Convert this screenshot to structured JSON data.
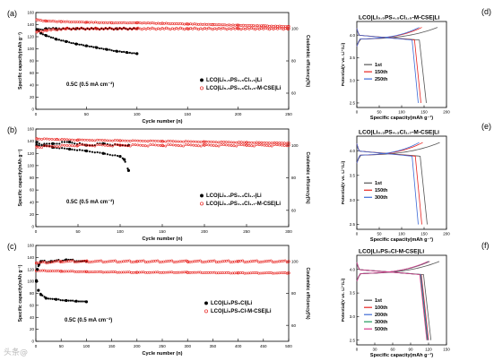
{
  "watermark": "头条@",
  "colors": {
    "black": "#000000",
    "red": "#e8231f",
    "blue": "#3d6bd6",
    "violet": "#d63a8a",
    "green": "#1f9a5c",
    "gray": "#555555"
  },
  "chart_data": [
    {
      "id": "a",
      "type": "scatter",
      "panel_label": "(a)",
      "xlabel": "Cycle number (n)",
      "ylabel": "Specific capacity(mAh g⁻¹)",
      "y2label": "Coulombic efficiency(%)",
      "xlim": [
        0,
        250
      ],
      "ylim": [
        0,
        160
      ],
      "y2lim": [
        50,
        110
      ],
      "xticks": [
        0,
        50,
        100,
        150,
        200,
        250
      ],
      "yticks": [
        0,
        20,
        40,
        60,
        80,
        100,
        120,
        140,
        160
      ],
      "y2ticks": [
        60,
        80,
        100
      ],
      "annotation": "0.5C (0.5 mA cm⁻²)",
      "series": [
        {
          "name": "LCO|Li₅.₅PS₄.₅Cl₁.₅|Li",
          "color": "black",
          "axis": "left",
          "x": [
            1,
            5,
            10,
            20,
            30,
            40,
            50,
            60,
            70,
            80,
            90,
            100
          ],
          "y": [
            132,
            126,
            122,
            116,
            112,
            108,
            105,
            102,
            99,
            96,
            94,
            92
          ]
        },
        {
          "name": "LCO|Li₅.₅PS₄.₅Cl₁.₅-M-CSE|Li",
          "color": "red",
          "axis": "left",
          "x": [
            1,
            10,
            25,
            50,
            75,
            100,
            125,
            150,
            175,
            200,
            225,
            250
          ],
          "y": [
            148,
            146,
            145,
            144,
            143,
            143,
            142,
            141,
            140,
            139,
            138,
            137
          ]
        },
        {
          "name": "",
          "color": "black",
          "axis": "right",
          "x": [
            1,
            10,
            20,
            40,
            60,
            80,
            100
          ],
          "y": [
            99,
            100,
            100,
            100,
            100,
            100,
            100
          ]
        },
        {
          "name": "",
          "color": "red",
          "axis": "right",
          "x": [
            1,
            10,
            30,
            60,
            100,
            150,
            200,
            250
          ],
          "y": [
            98,
            99,
            100,
            100,
            100,
            100,
            100,
            100
          ]
        }
      ]
    },
    {
      "id": "b",
      "type": "scatter",
      "panel_label": "(b)",
      "xlabel": "Cycle number (n)",
      "ylabel": "Specific capacity(mAh g⁻¹)",
      "y2label": "Coulombic efficiency(%)",
      "xlim": [
        0,
        300
      ],
      "ylim": [
        0,
        160
      ],
      "y2lim": [
        50,
        110
      ],
      "xticks": [
        0,
        50,
        100,
        150,
        200,
        250,
        300
      ],
      "yticks": [
        0,
        20,
        40,
        60,
        80,
        100,
        120,
        140,
        160
      ],
      "y2ticks": [
        60,
        80,
        100
      ],
      "annotation": "0.5C (0.5 mA cm⁻²)",
      "series": [
        {
          "name": "LCO|Li₆.₃PS₄.₃Cl₁.₇|Li",
          "color": "black",
          "axis": "left",
          "x": [
            1,
            10,
            20,
            40,
            60,
            80,
            100,
            105,
            110
          ],
          "y": [
            138,
            133,
            130,
            127,
            124,
            120,
            115,
            110,
            92
          ]
        },
        {
          "name": "LCO|Li₆.₃PS₄.₃Cl₁.₇-M-CSE|Li",
          "color": "red",
          "axis": "left",
          "x": [
            1,
            25,
            50,
            100,
            150,
            200,
            250,
            300
          ],
          "y": [
            144,
            143,
            142,
            141,
            140,
            139,
            138,
            137
          ]
        },
        {
          "name": "",
          "color": "black",
          "axis": "right",
          "x": [
            1,
            20,
            40,
            60,
            80,
            100,
            110
          ],
          "y": [
            100,
            101,
            102,
            100,
            101,
            100,
            100
          ]
        },
        {
          "name": "",
          "color": "red",
          "axis": "right",
          "x": [
            1,
            50,
            100,
            150,
            200,
            250,
            300
          ],
          "y": [
            99,
            100,
            100,
            100,
            100,
            100,
            100
          ]
        }
      ]
    },
    {
      "id": "c",
      "type": "scatter",
      "panel_label": "(c)",
      "xlabel": "Cycle number (n)",
      "ylabel": "Specific capacity(mAh g⁻¹)",
      "y2label": "Coulombic efficiency(%)",
      "xlim": [
        0,
        500
      ],
      "ylim": [
        0,
        160
      ],
      "y2lim": [
        50,
        110
      ],
      "xticks": [
        0,
        50,
        100,
        150,
        200,
        250,
        300,
        350,
        400,
        450,
        500
      ],
      "yticks": [
        0,
        20,
        40,
        60,
        80,
        100,
        120,
        140,
        160
      ],
      "y2ticks": [
        60,
        80,
        100
      ],
      "annotation": "0.5C (0.5 mA cm⁻²)",
      "series": [
        {
          "name": "LCO|Li₆PS₅Cl|Li",
          "color": "black",
          "axis": "left",
          "x": [
            1,
            5,
            10,
            20,
            40,
            60,
            80,
            100
          ],
          "y": [
            100,
            85,
            78,
            72,
            70,
            68,
            67,
            66
          ]
        },
        {
          "name": "LCO|Li₆PS₅Cl-M-CSE|Li",
          "color": "red",
          "axis": "left",
          "x": [
            1,
            50,
            100,
            200,
            300,
            400,
            500
          ],
          "y": [
            118,
            117,
            116,
            115,
            115,
            114,
            114
          ]
        },
        {
          "name": "",
          "color": "black",
          "axis": "right",
          "x": [
            1,
            3,
            6,
            10,
            30,
            60,
            100
          ],
          "y": [
            88,
            95,
            98,
            100,
            100,
            101,
            100
          ]
        },
        {
          "name": "",
          "color": "red",
          "axis": "right",
          "x": [
            1,
            50,
            100,
            200,
            300,
            400,
            500
          ],
          "y": [
            99,
            100,
            100,
            100,
            100,
            100,
            100
          ]
        }
      ]
    },
    {
      "id": "d",
      "type": "line",
      "panel_label": "(d)",
      "title": "LCO|Li₅.₅PS₄.₅Cl₁.₅-M-CSE|Li",
      "xlabel": "Specific capacity(mAh g⁻¹)",
      "ylabel": "Potential(V vs. Li⁺/Li)",
      "xlim": [
        0,
        200
      ],
      "ylim": [
        2.4,
        4.3
      ],
      "xticks": [
        0,
        50,
        100,
        150,
        200
      ],
      "yticks": [
        2.5,
        3.0,
        3.5,
        4.0
      ],
      "legend": "inside-left",
      "series": [
        {
          "name": "1st",
          "color": "gray",
          "cap": 155,
          "charge_cap": 180
        },
        {
          "name": "150th",
          "color": "red",
          "cap": 143,
          "charge_cap": 145
        },
        {
          "name": "250th",
          "color": "blue",
          "cap": 137,
          "charge_cap": 139
        }
      ]
    },
    {
      "id": "e",
      "type": "line",
      "panel_label": "(e)",
      "title": "LCO|Li₆.₃PS₄.₃Cl₁.₇-M-CSE|Li",
      "xlabel": "Specific capacity(mAh g⁻¹)",
      "ylabel": "Potential(V vs. Li⁺/Li)",
      "xlim": [
        0,
        200
      ],
      "ylim": [
        2.4,
        4.3
      ],
      "xticks": [
        0,
        50,
        100,
        150,
        200
      ],
      "yticks": [
        2.5,
        3.0,
        3.5,
        4.0
      ],
      "legend": "inside-left",
      "series": [
        {
          "name": "1st",
          "color": "gray",
          "cap": 157,
          "charge_cap": 185
        },
        {
          "name": "150th",
          "color": "red",
          "cap": 145,
          "charge_cap": 147
        },
        {
          "name": "300th",
          "color": "blue",
          "cap": 137,
          "charge_cap": 139
        }
      ]
    },
    {
      "id": "f",
      "type": "line",
      "panel_label": "(f)",
      "title": "LCO|Li₆PS₅Cl-M-CSE|Li",
      "xlabel": "Specific capacity(mAh g⁻¹)",
      "ylabel": "Potential(V vs. Li⁺/Li)",
      "xlim": [
        0,
        150
      ],
      "ylim": [
        2.4,
        4.3
      ],
      "xticks": [
        0,
        30,
        60,
        90,
        120,
        150
      ],
      "yticks": [
        2.5,
        3.0,
        3.5,
        4.0
      ],
      "legend": "inside-left",
      "series": [
        {
          "name": "1st",
          "color": "gray",
          "cap": 124,
          "charge_cap": 138
        },
        {
          "name": "100th",
          "color": "red",
          "cap": 120,
          "charge_cap": 122
        },
        {
          "name": "200th",
          "color": "blue",
          "cap": 119,
          "charge_cap": 121
        },
        {
          "name": "300th",
          "color": "green",
          "cap": 118,
          "charge_cap": 120
        },
        {
          "name": "500th",
          "color": "violet",
          "cap": 117,
          "charge_cap": 119
        }
      ]
    }
  ]
}
